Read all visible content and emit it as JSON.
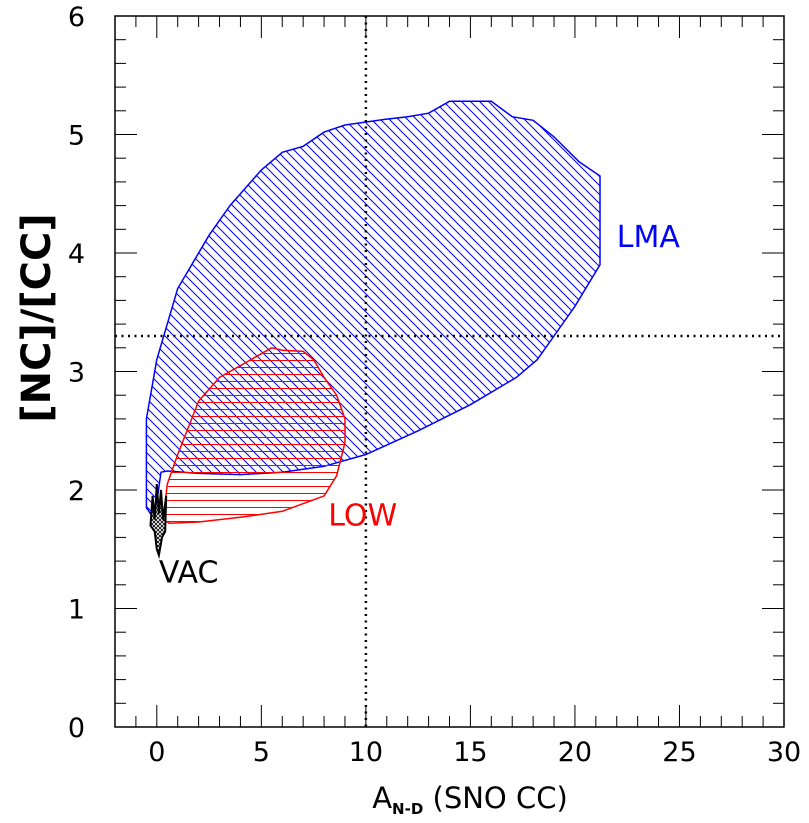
{
  "chart_data": {
    "type": "area",
    "title": "",
    "xlabel": {
      "main": "A",
      "subscript": "N-D",
      "rest": " (SNO CC)"
    },
    "ylabel": "[NC]/[CC]",
    "xlim": [
      -2,
      30
    ],
    "ylim": [
      0,
      6
    ],
    "x_ticks": [
      0,
      5,
      10,
      15,
      20,
      25,
      30
    ],
    "y_ticks": [
      0,
      1,
      2,
      3,
      4,
      5,
      6
    ],
    "x_minor_step": 1,
    "y_minor_step": 0.2,
    "grid": false,
    "reference_lines": [
      {
        "orientation": "vertical",
        "value": 10,
        "style": "dotted"
      },
      {
        "orientation": "horizontal",
        "value": 3.3,
        "style": "dotted"
      }
    ],
    "regions": [
      {
        "name": "LMA",
        "color": "#0000ff",
        "hatch": "diagonal",
        "label": "LMA",
        "label_at": [
          22,
          4.05
        ],
        "points": [
          [
            -0.5,
            1.85
          ],
          [
            -0.5,
            2.6
          ],
          [
            0,
            3.1
          ],
          [
            1,
            3.7
          ],
          [
            2.5,
            4.15
          ],
          [
            3.5,
            4.4
          ],
          [
            5,
            4.7
          ],
          [
            6,
            4.85
          ],
          [
            7,
            4.9
          ],
          [
            8,
            5.02
          ],
          [
            9,
            5.08
          ],
          [
            11,
            5.13
          ],
          [
            12,
            5.15
          ],
          [
            13,
            5.18
          ],
          [
            14,
            5.28
          ],
          [
            16,
            5.28
          ],
          [
            17,
            5.15
          ],
          [
            18,
            5.12
          ],
          [
            19,
            4.98
          ],
          [
            20.2,
            4.77
          ],
          [
            21.2,
            4.65
          ],
          [
            21.2,
            3.9
          ],
          [
            20,
            3.55
          ],
          [
            19,
            3.3
          ],
          [
            18.2,
            3.1
          ],
          [
            17.2,
            2.95
          ],
          [
            15,
            2.72
          ],
          [
            12.5,
            2.5
          ],
          [
            10,
            2.3
          ],
          [
            8,
            2.2
          ],
          [
            6,
            2.15
          ],
          [
            4,
            2.13
          ],
          [
            2,
            2.14
          ],
          [
            0.5,
            2.16
          ],
          [
            0.2,
            2.15
          ],
          [
            0,
            1.9
          ],
          [
            -0.3,
            1.8
          ]
        ]
      },
      {
        "name": "LOW",
        "color": "#ff0000",
        "hatch": "horizontal",
        "label": "LOW",
        "label_at": [
          8.2,
          1.7
        ],
        "points": [
          [
            0.3,
            1.75
          ],
          [
            0.5,
            2.05
          ],
          [
            1,
            2.3
          ],
          [
            2,
            2.75
          ],
          [
            3,
            2.95
          ],
          [
            4,
            3.05
          ],
          [
            5,
            3.15
          ],
          [
            5.5,
            3.2
          ],
          [
            6,
            3.18
          ],
          [
            7,
            3.17
          ],
          [
            7.5,
            3.1
          ],
          [
            8,
            2.95
          ],
          [
            8.6,
            2.8
          ],
          [
            9,
            2.6
          ],
          [
            9,
            2.4
          ],
          [
            8.6,
            2.12
          ],
          [
            8,
            1.95
          ],
          [
            6,
            1.82
          ],
          [
            4,
            1.77
          ],
          [
            2,
            1.73
          ],
          [
            0.6,
            1.72
          ],
          [
            0.3,
            1.75
          ]
        ]
      },
      {
        "name": "VAC",
        "color": "#000000",
        "hatch": "cross",
        "label": "VAC",
        "label_at": [
          0.1,
          1.22
        ],
        "points": [
          [
            -0.3,
            1.7
          ],
          [
            -0.2,
            1.95
          ],
          [
            -0.1,
            1.75
          ],
          [
            0,
            2.05
          ],
          [
            0.1,
            1.8
          ],
          [
            0.2,
            2.0
          ],
          [
            0.3,
            1.75
          ],
          [
            0.45,
            1.95
          ],
          [
            0.4,
            1.65
          ],
          [
            0.25,
            1.6
          ],
          [
            0.1,
            1.45
          ],
          [
            0,
            1.5
          ],
          [
            -0.1,
            1.65
          ],
          [
            -0.3,
            1.7
          ]
        ]
      }
    ]
  }
}
